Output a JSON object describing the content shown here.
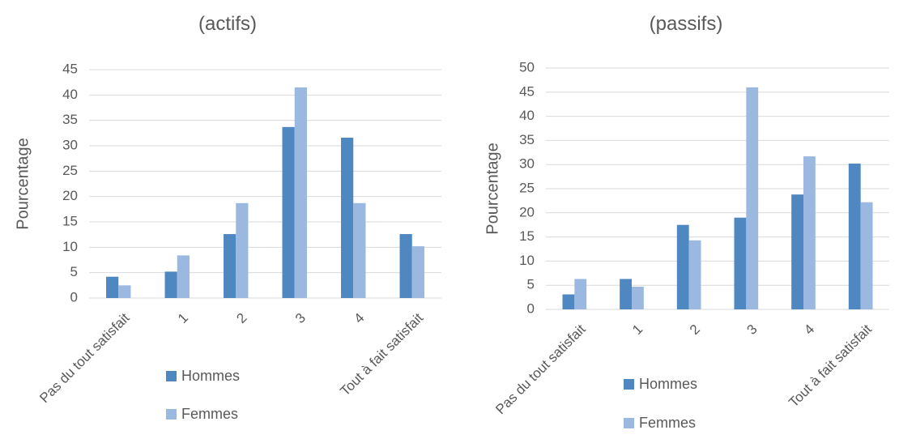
{
  "chart_data": [
    {
      "type": "bar",
      "title": "(actifs)",
      "xlabel": "",
      "ylabel": "Pourcentage",
      "ylim": [
        0,
        45
      ],
      "yticks": [
        0,
        5,
        10,
        15,
        20,
        25,
        30,
        35,
        40,
        45
      ],
      "categories": [
        "Pas du tout satisfait",
        "1",
        "2",
        "3",
        "4",
        "Tout à fait satisfait"
      ],
      "series": [
        {
          "name": "Hommes",
          "values": [
            4.2,
            5.2,
            12.6,
            33.7,
            31.6,
            12.6
          ]
        },
        {
          "name": "Femmes",
          "values": [
            2.5,
            8.4,
            18.7,
            41.5,
            18.7,
            10.2
          ]
        }
      ],
      "legend_position": "bottom-center",
      "grid": true
    },
    {
      "type": "bar",
      "title": "(passifs)",
      "xlabel": "",
      "ylabel": "Pourcentage",
      "ylim": [
        0,
        50
      ],
      "yticks": [
        0,
        5,
        10,
        15,
        20,
        25,
        30,
        35,
        40,
        45,
        50
      ],
      "categories": [
        "Pas du tout satisfait",
        "1",
        "2",
        "3",
        "4",
        "Tout à fait satisfait"
      ],
      "series": [
        {
          "name": "Hommes",
          "values": [
            3.1,
            6.3,
            17.5,
            19.0,
            23.8,
            30.2
          ]
        },
        {
          "name": "Femmes",
          "values": [
            6.3,
            4.7,
            14.3,
            46.0,
            31.7,
            22.2
          ]
        }
      ],
      "legend_position": "bottom-center",
      "grid": true
    }
  ],
  "colors": {
    "hommes": "#4f88c0",
    "femmes": "#9bb9e0",
    "grid": "#d9d9d9",
    "text": "#595959"
  }
}
